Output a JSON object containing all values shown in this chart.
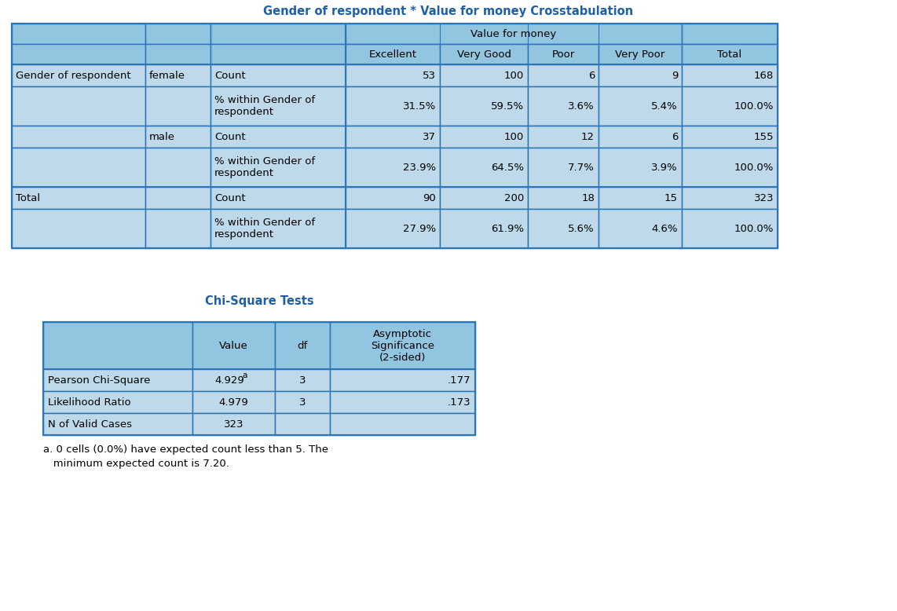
{
  "title1": "Gender of respondent * Value for money Crosstabulation",
  "title2": "Chi-Square Tests",
  "title_color": "#1F5FA6",
  "bg_color": "#FFFFFF",
  "hdr_bg": "#92C5E0",
  "cell_bg": "#BDD9EA",
  "border_color": "#2E75B6",
  "footnote_line1": "a. 0 cells (0.0%) have expected count less than 5. The",
  "footnote_line2": "   minimum expected count is 7.20.",
  "crosstab_rows": [
    {
      "label1": "Gender of respondent",
      "label2": "female",
      "label3": "Count",
      "vals": [
        "53",
        "100",
        "6",
        "9",
        "168"
      ]
    },
    {
      "label1": "",
      "label2": "",
      "label3": "% within Gender of\nrespondent",
      "vals": [
        "31.5%",
        "59.5%",
        "3.6%",
        "5.4%",
        "100.0%"
      ]
    },
    {
      "label1": "",
      "label2": "male",
      "label3": "Count",
      "vals": [
        "37",
        "100",
        "12",
        "6",
        "155"
      ]
    },
    {
      "label1": "",
      "label2": "",
      "label3": "% within Gender of\nrespondent",
      "vals": [
        "23.9%",
        "64.5%",
        "7.7%",
        "3.9%",
        "100.0%"
      ]
    },
    {
      "label1": "Total",
      "label2": "",
      "label3": "Count",
      "vals": [
        "90",
        "200",
        "18",
        "15",
        "323"
      ]
    },
    {
      "label1": "",
      "label2": "",
      "label3": "% within Gender of\nrespondent",
      "vals": [
        "27.9%",
        "61.9%",
        "5.6%",
        "4.6%",
        "100.0%"
      ]
    }
  ],
  "chisq_rows": [
    [
      "Pearson Chi-Square",
      "4.929",
      "a",
      "3",
      ".177"
    ],
    [
      "Likelihood Ratio",
      "4.979",
      "",
      "3",
      ".173"
    ],
    [
      "N of Valid Cases",
      "323",
      "",
      "",
      ""
    ]
  ]
}
